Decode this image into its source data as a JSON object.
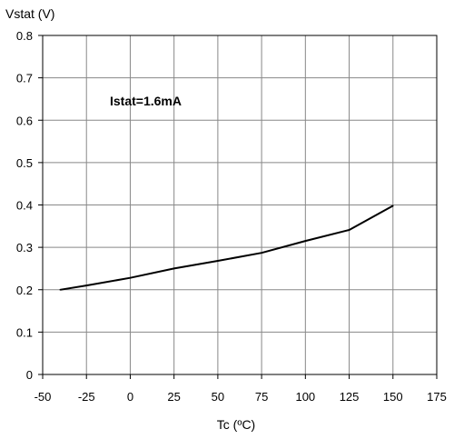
{
  "chart_data": {
    "type": "line",
    "title": "",
    "ylabel": "Vstat (V)",
    "xlabel": "Tc (ºC)",
    "xlim": [
      -50,
      175
    ],
    "ylim": [
      0,
      0.8
    ],
    "x_ticks": [
      "-50",
      "-25",
      "0",
      "25",
      "50",
      "75",
      "100",
      "125",
      "150",
      "175"
    ],
    "y_ticks": [
      "0",
      "0.1",
      "0.2",
      "0.3",
      "0.4",
      "0.5",
      "0.6",
      "0.7",
      "0.8"
    ],
    "grid": true,
    "annotation": "Istat=1.6mA",
    "series": [
      {
        "x": [
          -40,
          -25,
          0,
          25,
          50,
          75,
          100,
          125,
          150
        ],
        "y": [
          0.2,
          0.21,
          0.228,
          0.25,
          0.268,
          0.287,
          0.315,
          0.341,
          0.398
        ]
      }
    ],
    "colors": {
      "line": "#000000",
      "grid": "#888888",
      "background": "#ffffff"
    }
  }
}
